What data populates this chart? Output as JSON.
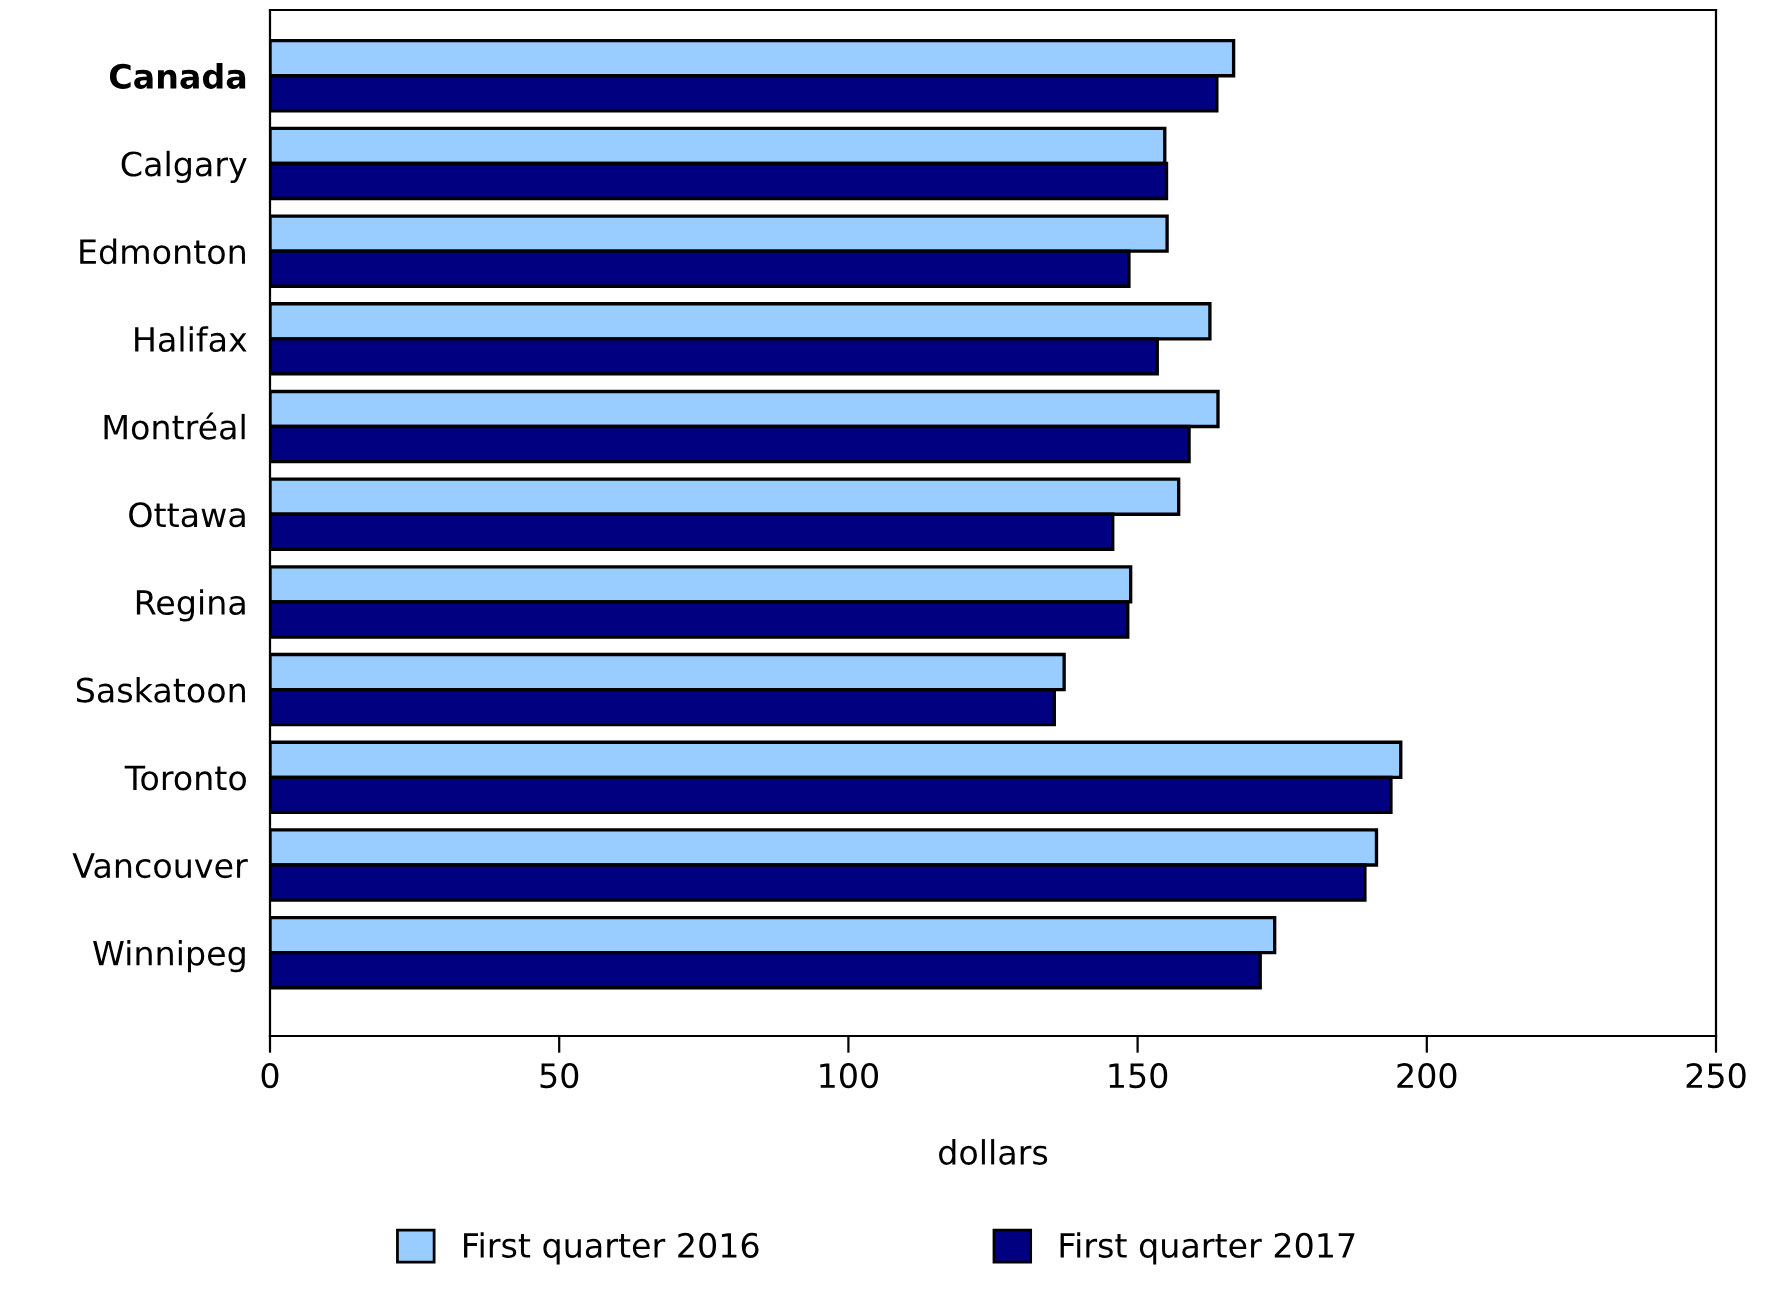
{
  "chart_data": {
    "type": "bar",
    "orientation": "horizontal",
    "xlabel": "dollars",
    "categories": [
      "Canada",
      "Calgary",
      "Edmonton",
      "Halifax",
      "Montréal",
      "Ottawa",
      "Regina",
      "Saskatoon",
      "Toronto",
      "Vancouver",
      "Winnipeg"
    ],
    "series": [
      {
        "name": "First quarter 2016",
        "color": "#99ccff",
        "values": [
          166.6,
          154.7,
          155.1,
          162.5,
          163.9,
          157.1,
          148.8,
          137.3,
          195.5,
          191.3,
          173.7
        ]
      },
      {
        "name": "First quarter 2017",
        "color": "#000080",
        "values": [
          163.7,
          155.0,
          148.5,
          153.4,
          158.9,
          145.7,
          148.3,
          135.6,
          193.8,
          189.3,
          171.2
        ]
      }
    ],
    "xlim": [
      0,
      250
    ],
    "xticks": [
      0,
      50,
      100,
      150,
      200,
      250
    ],
    "grid": false,
    "legend": "bottom"
  }
}
